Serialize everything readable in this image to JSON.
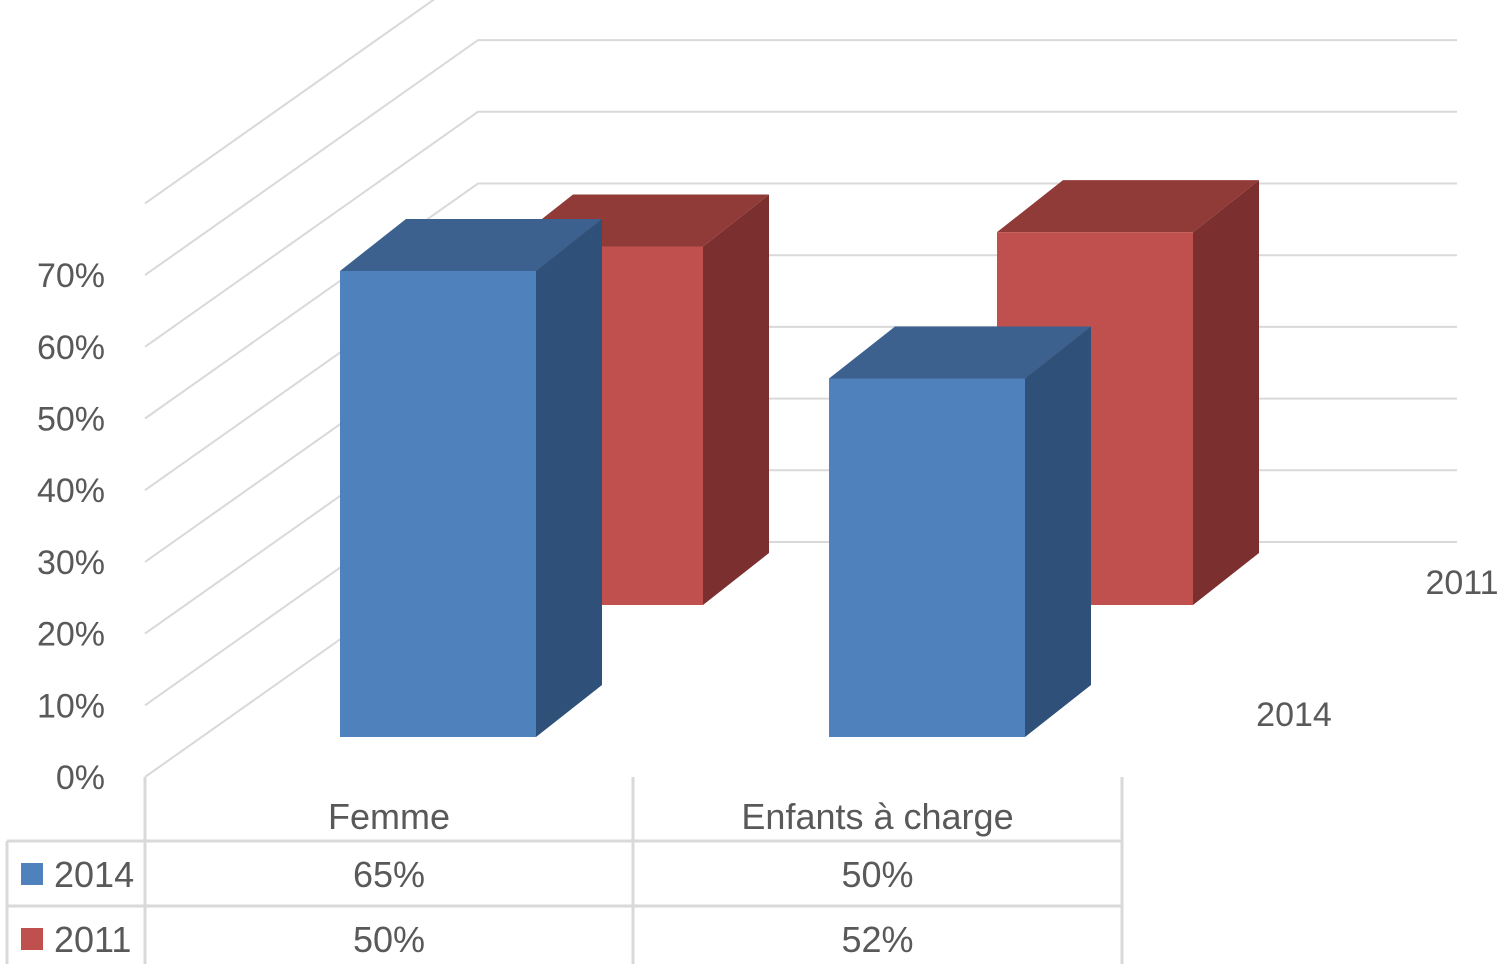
{
  "chart_data": {
    "type": "bar",
    "style": "3d-column-with-data-table",
    "categories": [
      "Femme",
      "Enfants à charge"
    ],
    "series": [
      {
        "name": "2014",
        "values": [
          65,
          50
        ],
        "value_labels": [
          "65%",
          "50%"
        ],
        "color": "#4F81BD",
        "top_color": "#3C618F",
        "side_color": "#2F5079"
      },
      {
        "name": "2011",
        "values": [
          50,
          52
        ],
        "value_labels": [
          "50%",
          "52%"
        ],
        "color": "#C0504D",
        "top_color": "#913B39",
        "side_color": "#7B302F"
      }
    ],
    "depth_labels": [
      "2011",
      "2014"
    ],
    "y_ticks": [
      "0%",
      "10%",
      "20%",
      "30%",
      "40%",
      "50%",
      "60%",
      "70%"
    ],
    "ylim": [
      0,
      70
    ],
    "gridlines": true,
    "legend": "data-table-bottom",
    "title": "",
    "xlabel": "",
    "ylabel": ""
  }
}
